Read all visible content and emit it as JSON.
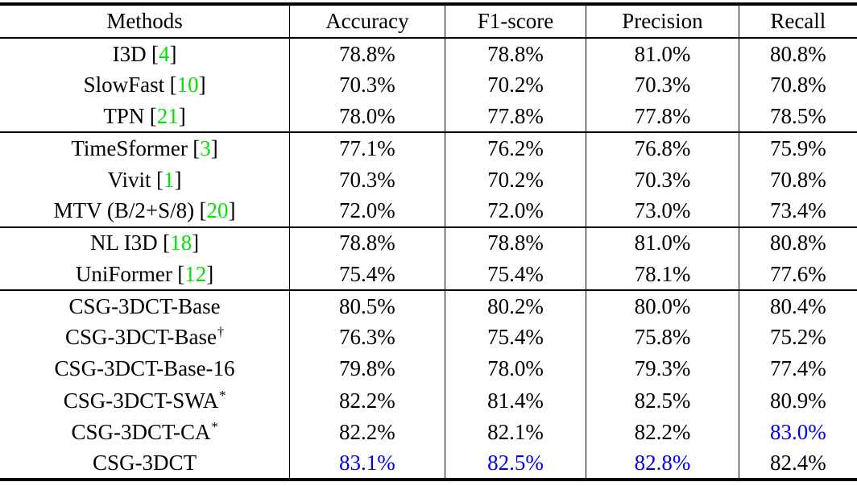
{
  "table": {
    "columns": [
      "Methods",
      "Accuracy",
      "F1-score",
      "Precision",
      "Recall"
    ],
    "citation_brackets": [
      "[",
      "]"
    ],
    "colors": {
      "citation_green": "#00E400",
      "highlight_blue": "#0000EE",
      "text_black": "#000000",
      "background": "#FFFFFF"
    },
    "rows": [
      {
        "method": {
          "label": "I3D",
          "sup": "",
          "cite": "4"
        },
        "values": [
          {
            "text": "78.8%"
          },
          {
            "text": "78.8%"
          },
          {
            "text": "81.0%"
          },
          {
            "text": "80.8%"
          }
        ]
      },
      {
        "method": {
          "label": "SlowFast",
          "sup": "",
          "cite": "10"
        },
        "values": [
          {
            "text": "70.3%"
          },
          {
            "text": "70.2%"
          },
          {
            "text": "70.3%"
          },
          {
            "text": "70.8%"
          }
        ]
      },
      {
        "method": {
          "label": "TPN",
          "sup": "",
          "cite": "21"
        },
        "group_end": true,
        "values": [
          {
            "text": "78.0%"
          },
          {
            "text": "77.8%"
          },
          {
            "text": "77.8%"
          },
          {
            "text": "78.5%"
          }
        ]
      },
      {
        "method": {
          "label": "TimeSformer",
          "sup": "",
          "cite": "3"
        },
        "values": [
          {
            "text": "77.1%"
          },
          {
            "text": "76.2%"
          },
          {
            "text": "76.8%"
          },
          {
            "text": "75.9%"
          }
        ]
      },
      {
        "method": {
          "label": "Vivit",
          "sup": "",
          "cite": "1"
        },
        "values": [
          {
            "text": "70.3%"
          },
          {
            "text": "70.2%"
          },
          {
            "text": "70.3%"
          },
          {
            "text": "70.8%"
          }
        ]
      },
      {
        "method": {
          "label": "MTV (B/2+S/8)",
          "sup": "",
          "cite": "20"
        },
        "group_end": true,
        "values": [
          {
            "text": "72.0%"
          },
          {
            "text": "72.0%"
          },
          {
            "text": "73.0%"
          },
          {
            "text": "73.4%"
          }
        ]
      },
      {
        "method": {
          "label": "NL I3D",
          "sup": "",
          "cite": "18"
        },
        "values": [
          {
            "text": "78.8%"
          },
          {
            "text": "78.8%"
          },
          {
            "text": "81.0%"
          },
          {
            "text": "80.8%"
          }
        ]
      },
      {
        "method": {
          "label": "UniFormer",
          "sup": "",
          "cite": "12"
        },
        "group_end": true,
        "values": [
          {
            "text": "75.4%"
          },
          {
            "text": "75.4%"
          },
          {
            "text": "78.1%"
          },
          {
            "text": "77.6%"
          }
        ]
      },
      {
        "method": {
          "label": "CSG-3DCT-Base",
          "sup": "",
          "cite": ""
        },
        "values": [
          {
            "text": "80.5%"
          },
          {
            "text": "80.2%"
          },
          {
            "text": "80.0%"
          },
          {
            "text": "80.4%"
          }
        ]
      },
      {
        "method": {
          "label": "CSG-3DCT-Base",
          "sup": "†",
          "cite": ""
        },
        "values": [
          {
            "text": "76.3%"
          },
          {
            "text": "75.4%"
          },
          {
            "text": "75.8%"
          },
          {
            "text": "75.2%"
          }
        ]
      },
      {
        "method": {
          "label": "CSG-3DCT-Base-16",
          "sup": "",
          "cite": ""
        },
        "values": [
          {
            "text": "79.8%"
          },
          {
            "text": "78.0%"
          },
          {
            "text": "79.3%"
          },
          {
            "text": "77.4%"
          }
        ]
      },
      {
        "method": {
          "label": "CSG-3DCT-SWA",
          "sup": "*",
          "cite": ""
        },
        "values": [
          {
            "text": "82.2%"
          },
          {
            "text": "81.4%"
          },
          {
            "text": "82.5%"
          },
          {
            "text": "80.9%"
          }
        ]
      },
      {
        "method": {
          "label": "CSG-3DCT-CA",
          "sup": "*",
          "cite": ""
        },
        "values": [
          {
            "text": "82.2%"
          },
          {
            "text": "82.1%"
          },
          {
            "text": "82.2%"
          },
          {
            "text": "83.0%",
            "highlight": true
          }
        ]
      },
      {
        "method": {
          "label": "CSG-3DCT",
          "sup": "",
          "cite": ""
        },
        "values": [
          {
            "text": "83.1%",
            "highlight": true
          },
          {
            "text": "82.5%",
            "highlight": true
          },
          {
            "text": "82.8%",
            "highlight": true
          },
          {
            "text": "82.4%"
          }
        ]
      }
    ]
  }
}
